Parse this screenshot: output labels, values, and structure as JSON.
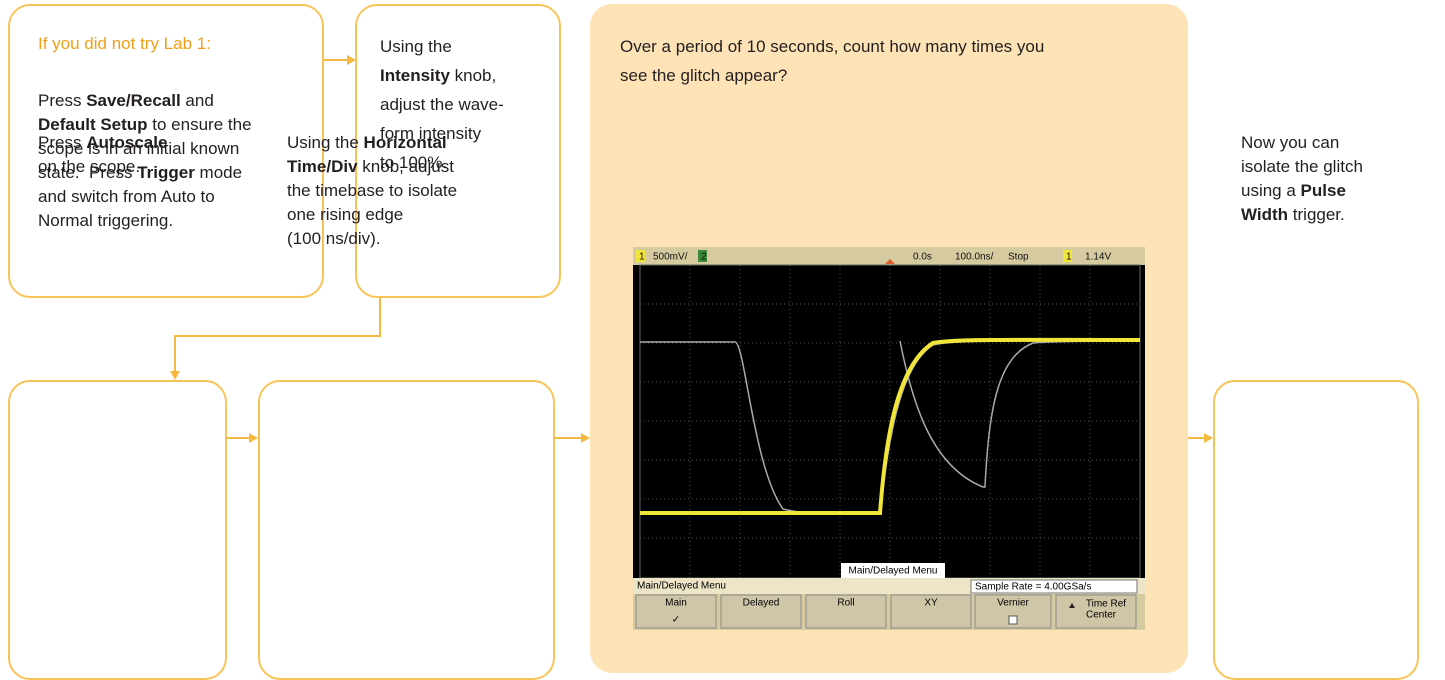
{
  "boxes": [
    {
      "title": "If you did not try Lab 1:",
      "lines": [
        [
          "Press ",
          {
            "text": "Save/Recall",
            "bold": true
          },
          " and"
        ],
        [
          {
            "text": "Default Setup",
            "bold": true
          },
          " to ensure the"
        ],
        [
          "scope is in an initial known"
        ],
        [
          "state.  Press ",
          {
            "text": "Trigger",
            "bold": true
          },
          " mode"
        ],
        [
          "and switch from Auto to"
        ],
        [
          "Normal triggering."
        ]
      ]
    },
    {
      "lines": [
        [
          "Using the"
        ],
        [
          {
            "text": "Intensity",
            "bold": true
          },
          " knob,"
        ],
        [
          "adjust the wave-"
        ],
        [
          "form intensity"
        ],
        [
          "to 100%."
        ]
      ]
    },
    {
      "lines": [
        [
          "Press ",
          {
            "text": "Autoscale",
            "bold": true
          }
        ],
        [
          "on the scope."
        ]
      ]
    },
    {
      "lines": [
        [
          "Using the ",
          {
            "text": "Horizontal",
            "bold": true
          }
        ],
        [
          {
            "text": "Time/Div",
            "bold": true
          },
          " knob, adjust"
        ],
        [
          "the timebase to isolate"
        ],
        [
          "one rising edge"
        ],
        [
          "(100 ns/div)."
        ]
      ]
    },
    {
      "lines": [
        [
          "Over a period of 10 seconds, count how many times you"
        ],
        [
          "see the glitch appear?"
        ]
      ]
    },
    {
      "lines": [
        [
          "Now you can"
        ],
        [
          "isolate the glitch"
        ],
        [
          "using a ",
          {
            "text": "Pulse",
            "bold": true
          }
        ],
        [
          {
            "text": "Width",
            "bold": true
          },
          " trigger."
        ]
      ]
    }
  ],
  "scope": {
    "status": [
      "1",
      "500mV/",
      "2",
      "0.0s",
      "100.0ns/",
      "Stop",
      "1",
      "1.14V"
    ],
    "overlay_label": "Main/Delayed Menu",
    "menu_title": "Main/Delayed Menu",
    "sample_rate": "Sample Rate = 4.00GSa/s",
    "softkeys": [
      [
        "Main"
      ],
      [
        "Delayed"
      ],
      [
        "Roll"
      ],
      [
        "XY"
      ],
      [
        "Vernier"
      ],
      [
        "Time Ref",
        "Center"
      ]
    ]
  }
}
